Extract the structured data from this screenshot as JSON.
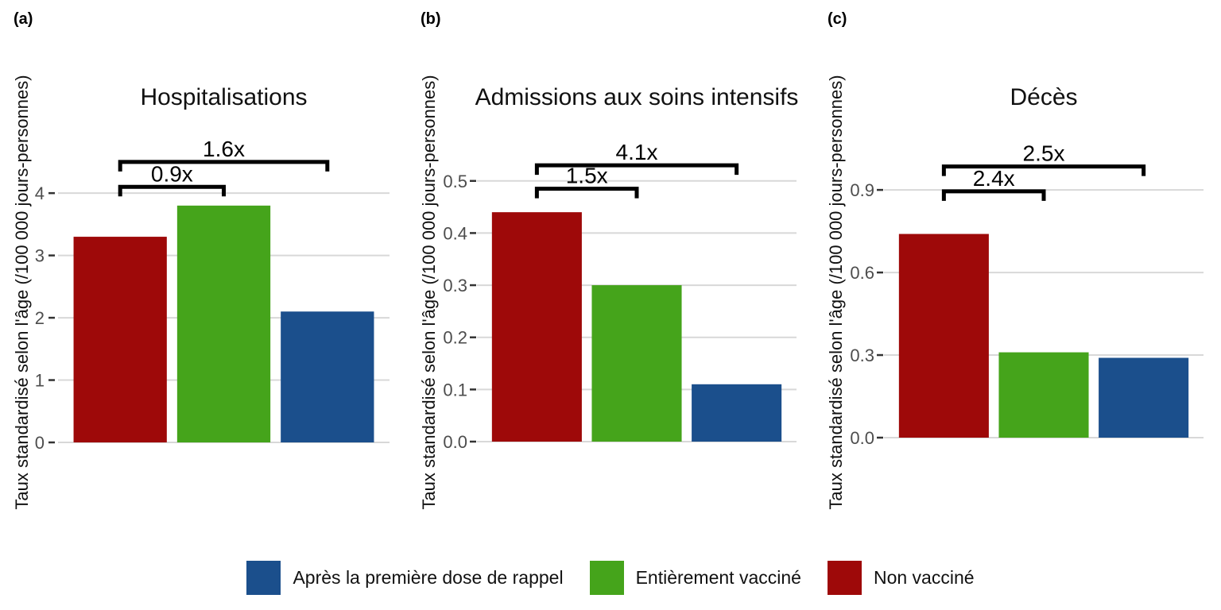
{
  "figure": {
    "background": "#ffffff"
  },
  "colors": {
    "bar_non_vaccine": "#9e0909",
    "bar_fully_vaccinated": "#45a41b",
    "bar_after_booster": "#1b4f8c",
    "gridline": "#d8d8d8",
    "tick_mark": "#333333",
    "tick_label": "#4d4d4d",
    "title_text": "#111111",
    "bracket": "#000000"
  },
  "legend": {
    "items": [
      {
        "label": "Après la première dose de rappel",
        "color": "#1b4f8c"
      },
      {
        "label": "Entièrement vacciné",
        "color": "#45a41b"
      },
      {
        "label": "Non vacciné",
        "color": "#9e0909"
      }
    ]
  },
  "chart_data": [
    {
      "type": "bar",
      "panel_label": "(a)",
      "title": "Hospitalisations",
      "ylabel": "Taux standardisé selon l'âge (/100 000 jours-personnes)",
      "categories": [
        "Non vacciné",
        "Entièrement vacciné",
        "Après la première dose de rappel"
      ],
      "values": [
        3.3,
        3.8,
        2.1
      ],
      "bar_colors": [
        "#9e0909",
        "#45a41b",
        "#1b4f8c"
      ],
      "yticks": [
        0,
        1,
        2,
        3,
        4
      ],
      "ytick_labels": [
        "0",
        "1",
        "2",
        "3",
        "4"
      ],
      "ylim": [
        0,
        5.2
      ],
      "grid": true,
      "legend_position": "bottom",
      "brackets": [
        {
          "label": "0.9x",
          "from": 0,
          "to": 1,
          "y": 4.1
        },
        {
          "label": "1.6x",
          "from": 0,
          "to": 2,
          "y": 4.5
        }
      ]
    },
    {
      "type": "bar",
      "panel_label": "(b)",
      "title": "Admissions aux soins intensifs",
      "ylabel": "Taux standardisé selon l'âge (/100 000 jours-personnes)",
      "categories": [
        "Non vacciné",
        "Entièrement vacciné",
        "Après la première dose de rappel"
      ],
      "values": [
        0.44,
        0.3,
        0.11
      ],
      "bar_colors": [
        "#9e0909",
        "#45a41b",
        "#1b4f8c"
      ],
      "yticks": [
        0,
        0.1,
        0.2,
        0.3,
        0.4,
        0.5
      ],
      "ytick_labels": [
        "0.0",
        "0.1",
        "0.2",
        "0.3",
        "0.4",
        "0.5"
      ],
      "ylim": [
        0,
        0.62
      ],
      "grid": true,
      "legend_position": "bottom",
      "brackets": [
        {
          "label": "1.5x",
          "from": 0,
          "to": 1,
          "y": 0.485
        },
        {
          "label": "4.1x",
          "from": 0,
          "to": 2,
          "y": 0.53
        }
      ]
    },
    {
      "type": "bar",
      "panel_label": "(c)",
      "title": "Décès",
      "ylabel": "Taux standardisé selon l'âge (/100 000 jours-personnes)",
      "categories": [
        "Non vacciné",
        "Entièrement vacciné",
        "Après la première dose de rappel"
      ],
      "values": [
        0.74,
        0.31,
        0.29
      ],
      "bar_colors": [
        "#9e0909",
        "#45a41b",
        "#1b4f8c"
      ],
      "yticks": [
        0,
        0.3,
        0.6,
        0.9
      ],
      "ytick_labels": [
        "0.0",
        "0.3",
        "0.6",
        "0.9"
      ],
      "ylim": [
        0,
        1.16
      ],
      "grid": true,
      "legend_position": "bottom",
      "brackets": [
        {
          "label": "2.4x",
          "from": 0,
          "to": 1,
          "y": 0.895
        },
        {
          "label": "2.5x",
          "from": 0,
          "to": 2,
          "y": 0.985
        }
      ]
    }
  ]
}
